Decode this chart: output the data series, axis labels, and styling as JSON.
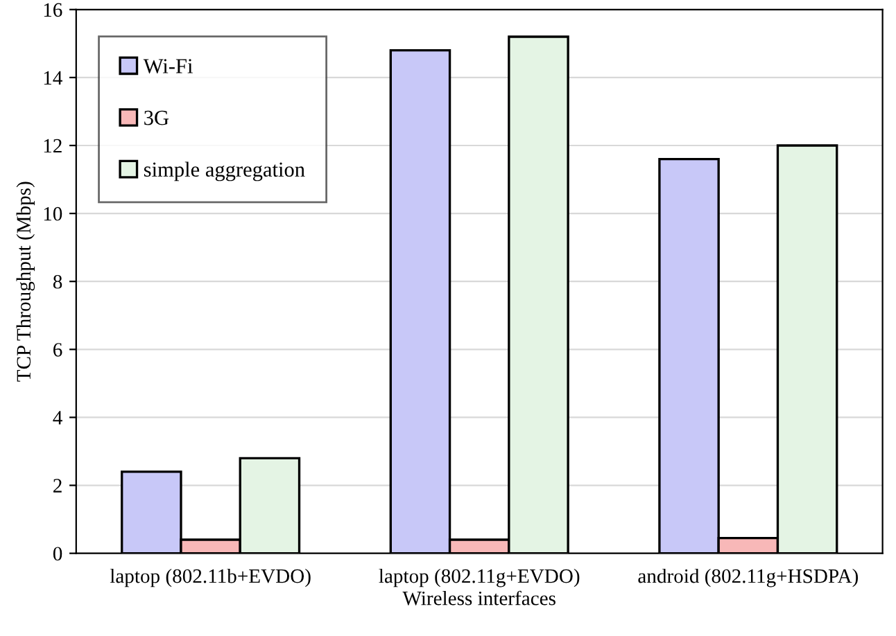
{
  "chart_data": {
    "type": "bar",
    "xlabel": "Wireless interfaces",
    "ylabel": "TCP Throughput (Mbps)",
    "categories": [
      "laptop (802.11b+EVDO)",
      "laptop (802.11g+EVDO)",
      "android (802.11g+HSDPA)"
    ],
    "series": [
      {
        "name": "Wi-Fi",
        "color": "#c8c8f8",
        "values": [
          2.4,
          14.8,
          11.6
        ]
      },
      {
        "name": "3G",
        "color": "#f8b8b8",
        "values": [
          0.4,
          0.4,
          0.45
        ]
      },
      {
        "name": "simple aggregation",
        "color": "#e4f4e4",
        "values": [
          2.8,
          15.2,
          12.0
        ]
      }
    ],
    "ylim": [
      0,
      16
    ],
    "yticks": [
      0,
      2,
      4,
      6,
      8,
      10,
      12,
      14,
      16
    ],
    "grid": "y",
    "legend": "top left"
  }
}
